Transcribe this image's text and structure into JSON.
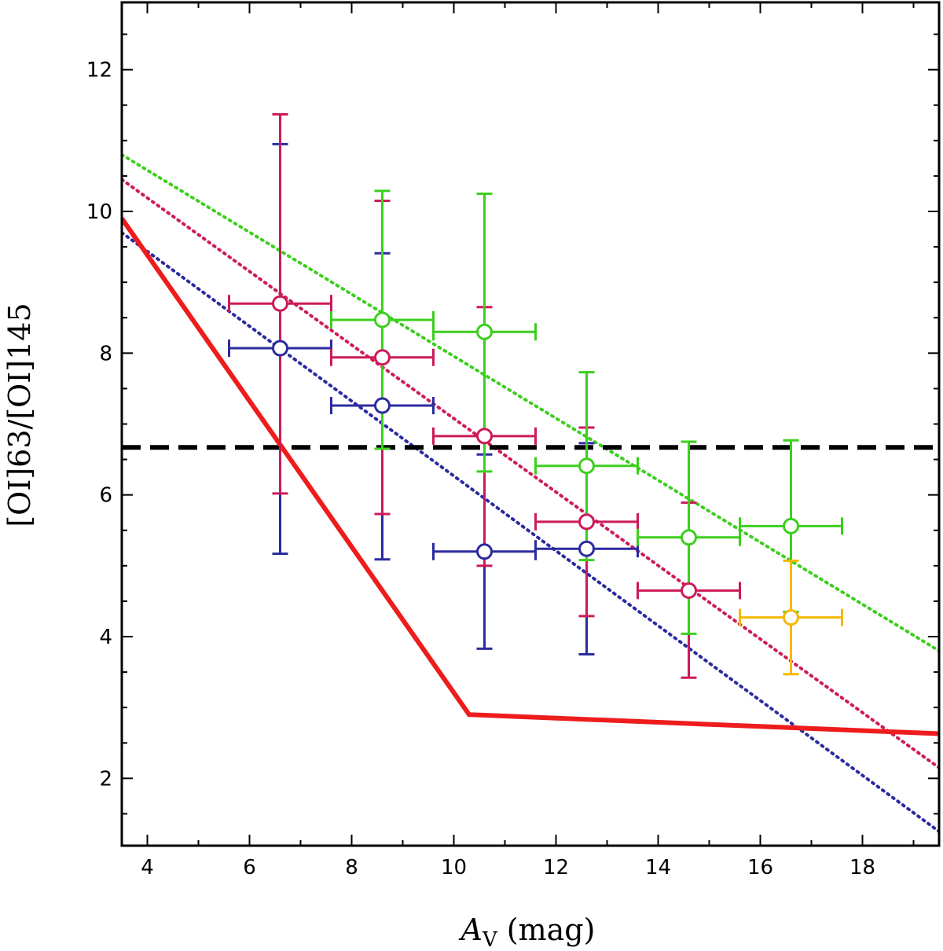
{
  "chart_data": {
    "type": "scatter",
    "title": "",
    "xlabel": "A_V (mag)",
    "xlabel_main": "A",
    "xlabel_sub": "V",
    "xlabel_unit": "(mag)",
    "ylabel": "[OI]63/[OI]145",
    "xlim": [
      3.5,
      19.5
    ],
    "ylim": [
      1.05,
      12.95
    ],
    "xticks": [
      4,
      6,
      8,
      10,
      12,
      14,
      16,
      18
    ],
    "yticks": [
      2,
      4,
      6,
      8,
      10,
      12
    ],
    "grid": false,
    "legend": "none",
    "series": [
      {
        "name": "blue",
        "color": "#2b2ba0",
        "points": [
          {
            "x": 6.6,
            "y": 8.07,
            "xerr": 1.0,
            "ylo": 5.17,
            "yhi": 10.95
          },
          {
            "x": 8.6,
            "y": 7.26,
            "xerr": 1.0,
            "ylo": 5.09,
            "yhi": 9.41
          },
          {
            "x": 10.6,
            "y": 5.2,
            "xerr": 1.0,
            "ylo": 3.83,
            "yhi": 6.57
          },
          {
            "x": 12.6,
            "y": 5.24,
            "xerr": 1.0,
            "ylo": 3.75,
            "yhi": 6.73
          }
        ]
      },
      {
        "name": "crimson",
        "color": "#cc1a5a",
        "points": [
          {
            "x": 6.6,
            "y": 8.7,
            "xerr": 1.0,
            "ylo": 6.02,
            "yhi": 11.37
          },
          {
            "x": 8.6,
            "y": 7.94,
            "xerr": 1.0,
            "ylo": 5.73,
            "yhi": 10.15
          },
          {
            "x": 10.6,
            "y": 6.83,
            "xerr": 1.0,
            "ylo": 5.0,
            "yhi": 8.65
          },
          {
            "x": 12.6,
            "y": 5.62,
            "xerr": 1.0,
            "ylo": 4.29,
            "yhi": 6.95
          },
          {
            "x": 14.6,
            "y": 4.65,
            "xerr": 1.0,
            "ylo": 3.42,
            "yhi": 5.89
          }
        ]
      },
      {
        "name": "green",
        "color": "#3ccf1e",
        "points": [
          {
            "x": 8.6,
            "y": 8.47,
            "xerr": 1.0,
            "ylo": 6.65,
            "yhi": 10.29
          },
          {
            "x": 10.6,
            "y": 8.3,
            "xerr": 1.0,
            "ylo": 6.33,
            "yhi": 10.25
          },
          {
            "x": 12.6,
            "y": 6.41,
            "xerr": 1.0,
            "ylo": 5.08,
            "yhi": 7.73
          },
          {
            "x": 14.6,
            "y": 5.4,
            "xerr": 1.0,
            "ylo": 4.04,
            "yhi": 6.75
          },
          {
            "x": 16.6,
            "y": 5.56,
            "xerr": 1.0,
            "ylo": 4.35,
            "yhi": 6.77
          }
        ]
      },
      {
        "name": "orange",
        "color": "#f5b800",
        "points": [
          {
            "x": 16.6,
            "y": 4.27,
            "xerr": 1.0,
            "ylo": 3.47,
            "yhi": 5.07
          }
        ]
      }
    ],
    "fit_lines": [
      {
        "name": "green-fit",
        "color": "#3ccf1e",
        "x": [
          3.5,
          19.5
        ],
        "y": [
          10.8,
          3.8
        ]
      },
      {
        "name": "crimson-fit",
        "color": "#cc1a5a",
        "x": [
          3.5,
          19.5
        ],
        "y": [
          10.45,
          2.15
        ]
      },
      {
        "name": "blue-fit",
        "color": "#2b2ba0",
        "x": [
          3.5,
          19.5
        ],
        "y": [
          9.7,
          1.25
        ]
      }
    ],
    "model_line": {
      "name": "model",
      "color": "#ee1c1c",
      "x": [
        3.5,
        10.3,
        19.5
      ],
      "y": [
        9.9,
        2.9,
        2.63
      ]
    },
    "reference_line": {
      "name": "reference",
      "color": "#000000",
      "y": 6.67
    }
  }
}
